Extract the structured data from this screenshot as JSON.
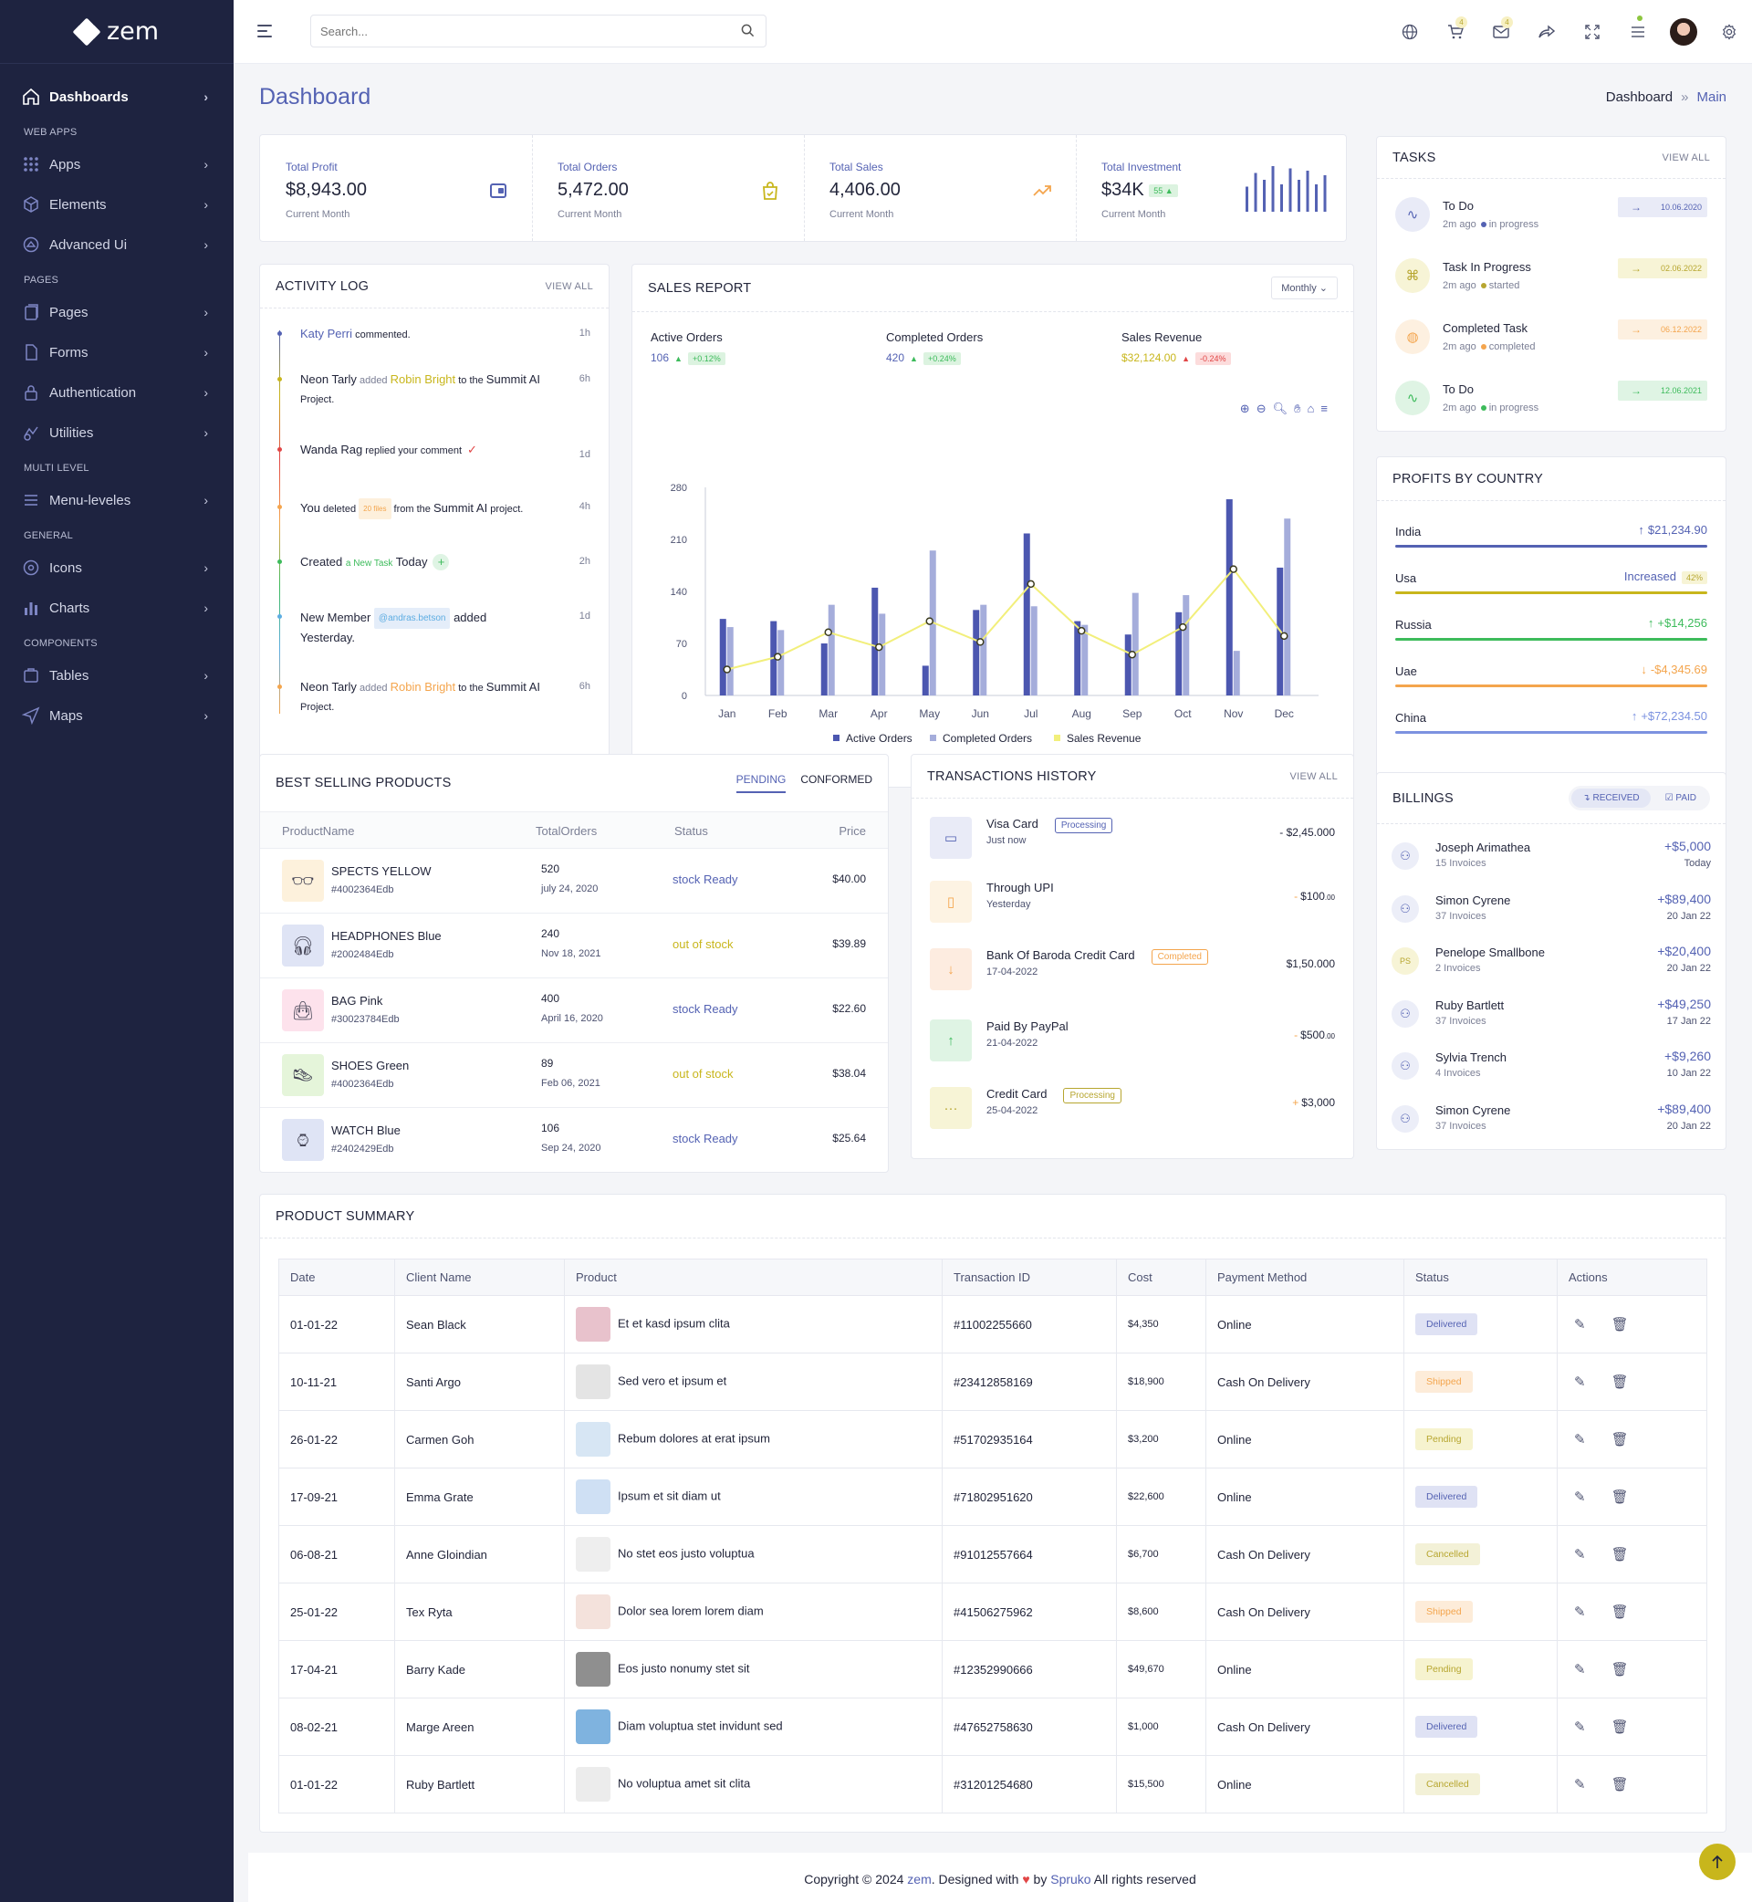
{
  "brand": {
    "name": "zem"
  },
  "sidebar": {
    "items": [
      {
        "type": "item",
        "label": "Dashboards",
        "icon": "home-icon",
        "active": true
      },
      {
        "type": "cat",
        "label": "WEB APPS"
      },
      {
        "type": "item",
        "label": "Apps",
        "icon": "grid-icon"
      },
      {
        "type": "item",
        "label": "Elements",
        "icon": "cube-icon"
      },
      {
        "type": "item",
        "label": "Advanced Ui",
        "icon": "layers-icon"
      },
      {
        "type": "cat",
        "label": "PAGES"
      },
      {
        "type": "item",
        "label": "Pages",
        "icon": "pages-icon"
      },
      {
        "type": "item",
        "label": "Forms",
        "icon": "file-icon"
      },
      {
        "type": "item",
        "label": "Authentication",
        "icon": "lock-icon"
      },
      {
        "type": "item",
        "label": "Utilities",
        "icon": "utilities-icon"
      },
      {
        "type": "cat",
        "label": "MULTI LEVEL"
      },
      {
        "type": "item",
        "label": "Menu-leveles",
        "icon": "menu-icon"
      },
      {
        "type": "cat",
        "label": "GENERAL"
      },
      {
        "type": "item",
        "label": "Icons",
        "icon": "icons-icon"
      },
      {
        "type": "item",
        "label": "Charts",
        "icon": "chart-icon"
      },
      {
        "type": "cat",
        "label": "COMPONENTS"
      },
      {
        "type": "item",
        "label": "Tables",
        "icon": "table-icon"
      },
      {
        "type": "item",
        "label": "Maps",
        "icon": "map-icon"
      }
    ]
  },
  "header": {
    "search_placeholder": "Search...",
    "cart_badge": "4",
    "mail_badge": "4"
  },
  "page": {
    "title": "Dashboard",
    "crumb_root": "Dashboard",
    "crumb_sep": "»",
    "crumb_current": "Main"
  },
  "stats": [
    {
      "label": "Total Profit",
      "value": "$8,943.00",
      "sub": "Current Month",
      "icon": "wallet-icon",
      "color": "#5462b3"
    },
    {
      "label": "Total Orders",
      "value": "5,472.00",
      "sub": "Current Month",
      "icon": "bag-icon",
      "color": "#c8b61c"
    },
    {
      "label": "Total Sales",
      "value": "4,406.00",
      "sub": "Current Month",
      "icon": "trend-icon",
      "color": "#f4a54d"
    },
    {
      "label": "Total Investment",
      "value": "$34K",
      "sub": "Current Month",
      "badge": "55",
      "icon": "bars-icon",
      "color": "#5462b3"
    }
  ],
  "investment_bars": [
    0.55,
    0.85,
    0.7,
    1.0,
    0.6,
    0.95,
    0.7,
    0.9,
    0.6,
    0.8
  ],
  "activity": {
    "title": "ACTIVITY LOG",
    "view_all": "VIEW ALL",
    "rows": [
      {
        "a": "Katy Perri",
        "b": " commented.",
        "time": "1h",
        "color": "#5462b3"
      },
      {
        "a": "Neon Tarly",
        "b": " added ",
        "c": "Robin Bright",
        "d": " to the ",
        "e": "Summit AI",
        "f": "Project.",
        "time": "6h",
        "color": "#c8b61c"
      },
      {
        "a": "Wanda Rag",
        "b": " replied your comment",
        "time": "1d",
        "color": "#e14646"
      },
      {
        "a": "You",
        "b": " deleted ",
        "c": "20 files",
        "d": " from the ",
        "e": "Summit AI",
        "f": " project.",
        "time": "4h",
        "color": "#f4a54d"
      },
      {
        "a": "Created",
        "b": "a New Task",
        "c": "Today",
        "time": "2h",
        "color": "#3dbb5b"
      },
      {
        "a": "New Member",
        "b": "@andras.betson",
        "c": "added",
        "d": "Yesterday.",
        "time": "1d",
        "color": "#5dade2"
      },
      {
        "a": "Neon Tarly",
        "b": " added ",
        "c": "Robin Bright",
        "d": " to the ",
        "e": "Summit AI",
        "f": "Project.",
        "time": "6h",
        "color": "#f4a54d"
      }
    ]
  },
  "sales_report": {
    "title": "SALES REPORT",
    "period": "Monthly",
    "kpis": [
      {
        "label": "Active Orders",
        "value": "106",
        "change": "+0.12%",
        "dir": "up"
      },
      {
        "label": "Completed Orders",
        "value": "420",
        "change": "+0.24%",
        "dir": "up"
      },
      {
        "label": "Sales Revenue",
        "value": "$32,124.00",
        "change": "-0.24%",
        "dir": "down"
      }
    ]
  },
  "chart_data": {
    "type": "bar",
    "categories": [
      "Jan",
      "Feb",
      "Mar",
      "Apr",
      "May",
      "Jun",
      "Jul",
      "Aug",
      "Sep",
      "Oct",
      "Nov",
      "Dec"
    ],
    "series": [
      {
        "name": "Active Orders",
        "type": "bar",
        "color": "#4c57b0",
        "values": [
          103,
          100,
          70,
          145,
          40,
          115,
          218,
          100,
          82,
          112,
          264,
          172
        ]
      },
      {
        "name": "Completed Orders",
        "type": "bar",
        "color": "#a5addb",
        "values": [
          92,
          88,
          122,
          110,
          195,
          122,
          120,
          95,
          138,
          135,
          60,
          238
        ]
      },
      {
        "name": "Sales Revenue",
        "type": "line",
        "color": "#f2ef7b",
        "values": [
          35,
          52,
          85,
          65,
          100,
          72,
          150,
          87,
          55,
          92,
          170,
          80
        ]
      }
    ],
    "yticks": [
      0,
      70,
      140,
      210,
      280
    ],
    "ylim": [
      0,
      280
    ]
  },
  "tasks": {
    "title": "TASKS",
    "view_all": "VIEW ALL",
    "items": [
      {
        "title": "To Do",
        "ago": "2m ago",
        "status": "in progress",
        "date": "10.06.2020",
        "color": "#5462b3",
        "bg": "#e9ebf7",
        "icon": "pulse-icon"
      },
      {
        "title": "Task In Progress",
        "ago": "2m ago",
        "status": "started",
        "date": "02.06.2022",
        "color": "#b7a630",
        "bg": "#f7f4d6",
        "icon": "command-icon"
      },
      {
        "title": "Completed Task",
        "ago": "2m ago",
        "status": "completed",
        "date": "06.12.2022",
        "color": "#f4a54d",
        "bg": "#fdf0e0",
        "icon": "globe-icon"
      },
      {
        "title": "To Do",
        "ago": "2m ago",
        "status": "in progress",
        "date": "12.06.2021",
        "color": "#3dbb5b",
        "bg": "#dff4e4",
        "icon": "activity-icon"
      }
    ]
  },
  "profits": {
    "title": "PROFITS BY COUNTRY",
    "rows": [
      {
        "country": "India",
        "value": "$21,234.90",
        "arrow": "↑",
        "color": "#5462b3",
        "text_color": "#5462b3"
      },
      {
        "country": "Usa",
        "value": "Increased",
        "badge": "42%",
        "color": "#c8b61c",
        "text_color": "#5462b3"
      },
      {
        "country": "Russia",
        "value": "+$14,256",
        "arrow": "↑",
        "color": "#3dbb5b",
        "text_color": "#3dbb5b"
      },
      {
        "country": "Uae",
        "value": "-$4,345.69",
        "arrow": "↓",
        "color": "#f4a54d",
        "text_color": "#f4a54d"
      },
      {
        "country": "China",
        "value": "+$72,234.50",
        "arrow": "↑",
        "color": "#7c92e0",
        "text_color": "#7c92e0"
      }
    ]
  },
  "best_selling": {
    "title": "BEST SELLING PRODUCTS",
    "tab_pending": "PENDING",
    "tab_conformed": "CONFORMED",
    "columns": [
      "ProductName",
      "TotalOrders",
      "Status",
      "Price"
    ],
    "rows": [
      {
        "name": "SPECTS YELLOW",
        "sku": "#4002364Edb",
        "orders": "520",
        "date": "july 24, 2020",
        "status": "stock Ready",
        "status_color": "#5462b3",
        "price": "$40.00",
        "img_bg": "#fdf1dc",
        "img": "glasses"
      },
      {
        "name": "HEADPHONES Blue",
        "sku": "#2002484Edb",
        "orders": "240",
        "date": "Nov 18, 2021",
        "status": "out of stock",
        "status_color": "#c8b61c",
        "price": "$39.89",
        "img_bg": "#dfe4f5",
        "img": "headphones"
      },
      {
        "name": "BAG Pink",
        "sku": "#30023784Edb",
        "orders": "400",
        "date": "April 16, 2020",
        "status": "stock Ready",
        "status_color": "#5462b3",
        "price": "$22.60",
        "img_bg": "#fde2ec",
        "img": "bag"
      },
      {
        "name": "SHOES Green",
        "sku": "#4002364Edb",
        "orders": "89",
        "date": "Feb 06, 2021",
        "status": "out of stock",
        "status_color": "#c8b61c",
        "price": "$38.04",
        "img_bg": "#e5f5da",
        "img": "shoes"
      },
      {
        "name": "WATCH Blue",
        "sku": "#2402429Edb",
        "orders": "106",
        "date": "Sep 24, 2020",
        "status": "stock Ready",
        "status_color": "#5462b3",
        "price": "$25.64",
        "img_bg": "#dfe4f5",
        "img": "watch"
      }
    ]
  },
  "transactions": {
    "title": "TRANSACTIONS HISTORY",
    "view_all": "VIEW ALL",
    "rows": [
      {
        "title": "Visa Card",
        "sub": "Just now",
        "tag": "Processing",
        "tag_color": "#5462b3",
        "amount": "- $2,45.000",
        "icon_bg": "#e9ebf7",
        "icon_color": "#5462b3",
        "icon": "card-icon"
      },
      {
        "title": "Through UPI",
        "sub": "Yesterday",
        "amount": "$100",
        "amount_suffix": ".00",
        "amount_prefix": "-",
        "icon_bg": "#fdf3e3",
        "icon_color": "#f4a54d",
        "icon": "phone-icon"
      },
      {
        "title": "Bank Of Baroda Credit Card",
        "sub": "17-04-2022",
        "tag": "Completed",
        "tag_color": "#f4a54d",
        "amount": "$1,50.000",
        "icon_bg": "#fdece0",
        "icon_color": "#f4a54d",
        "icon": "arrow-down-icon"
      },
      {
        "title": "Paid By PayPal",
        "sub": "21-04-2022",
        "amount": "$500",
        "amount_suffix": ".00",
        "amount_prefix": "-",
        "icon_bg": "#dff4e4",
        "icon_color": "#3dbb5b",
        "icon": "arrow-up-icon"
      },
      {
        "title": "Credit Card",
        "sub": "25-04-2022",
        "tag": "Processing",
        "tag_color": "#b7a630",
        "amount": "$3,000",
        "amount_prefix": "+",
        "icon_bg": "#f7f4d6",
        "icon_color": "#b7a630",
        "icon": "dots-icon"
      }
    ]
  },
  "billings": {
    "title": "BILLINGS",
    "tab_received": "RECEIVED",
    "tab_paid": "PAID",
    "rows": [
      {
        "name": "Joseph Arimathea",
        "invoices": "15 Invoices",
        "amount": "+$5,000",
        "date": "Today",
        "initials": ""
      },
      {
        "name": "Simon Cyrene",
        "invoices": "37 Invoices",
        "amount": "+$89,400",
        "date": "20 Jan 22",
        "initials": ""
      },
      {
        "name": "Penelope Smallbone",
        "invoices": "2 Invoices",
        "amount": "+$20,400",
        "date": "20 Jan 22",
        "initials": "PS"
      },
      {
        "name": "Ruby Bartlett",
        "invoices": "37 Invoices",
        "amount": "+$49,250",
        "date": "17 Jan 22",
        "initials": ""
      },
      {
        "name": "Sylvia Trench",
        "invoices": "4 Invoices",
        "amount": "+$9,260",
        "date": "10 Jan 22",
        "initials": ""
      },
      {
        "name": "Simon Cyrene",
        "invoices": "37 Invoices",
        "amount": "+$89,400",
        "date": "20 Jan 22",
        "initials": ""
      }
    ]
  },
  "product_summary": {
    "title": "PRODUCT SUMMARY",
    "columns": [
      "Date",
      "Client Name",
      "Product",
      "Transaction ID",
      "Cost",
      "Payment Method",
      "Status",
      "Actions"
    ],
    "rows": [
      {
        "date": "01-01-22",
        "client": "Sean Black",
        "product": "Et et kasd ipsum clita",
        "tid": "#11002255660",
        "cost": "$4,350",
        "method": "Online",
        "status": "Delivered",
        "img_bg": "#e8c2cc"
      },
      {
        "date": "10-11-21",
        "client": "Santi Argo",
        "product": "Sed vero et ipsum et",
        "tid": "#23412858169",
        "cost": "$18,900",
        "method": "Cash On Delivery",
        "status": "Shipped",
        "img_bg": "#e4e4e4"
      },
      {
        "date": "26-01-22",
        "client": "Carmen Goh",
        "product": "Rebum dolores at erat ipsum",
        "tid": "#51702935164",
        "cost": "$3,200",
        "method": "Online",
        "status": "Pending",
        "img_bg": "#d7e6f4"
      },
      {
        "date": "17-09-21",
        "client": "Emma Grate",
        "product": "Ipsum et sit diam ut",
        "tid": "#71802951620",
        "cost": "$22,600",
        "method": "Online",
        "status": "Delivered",
        "img_bg": "#cfe0f4"
      },
      {
        "date": "06-08-21",
        "client": "Anne Gloindian",
        "product": "No stet eos justo voluptua",
        "tid": "#91012557664",
        "cost": "$6,700",
        "method": "Cash On Delivery",
        "status": "Cancelled",
        "img_bg": "#eeeeee"
      },
      {
        "date": "25-01-22",
        "client": "Tex Ryta",
        "product": "Dolor sea lorem lorem diam",
        "tid": "#41506275962",
        "cost": "$8,600",
        "method": "Cash On Delivery",
        "status": "Shipped",
        "img_bg": "#f4e2dc"
      },
      {
        "date": "17-04-21",
        "client": "Barry Kade",
        "product": "Eos justo nonumy stet sit",
        "tid": "#12352990666",
        "cost": "$49,670",
        "method": "Online",
        "status": "Pending",
        "img_bg": "#8f8f8f"
      },
      {
        "date": "08-02-21",
        "client": "Marge Areen",
        "product": "Diam voluptua stet invidunt sed",
        "tid": "#47652758630",
        "cost": "$1,000",
        "method": "Cash On Delivery",
        "status": "Delivered",
        "img_bg": "#7fb3df"
      },
      {
        "date": "01-01-22",
        "client": "Ruby Bartlett",
        "product": "No voluptua amet sit clita",
        "tid": "#31201254680",
        "cost": "$15,500",
        "method": "Online",
        "status": "Cancelled",
        "img_bg": "#ececec"
      }
    ],
    "status_colors": {
      "Delivered": {
        "bg": "#dfe2f4",
        "fg": "#5462b3"
      },
      "Shipped": {
        "bg": "#fdecd9",
        "fg": "#f4a54d"
      },
      "Pending": {
        "bg": "#f6f3cf",
        "fg": "#b7a630"
      },
      "Cancelled": {
        "bg": "#f3f1d7",
        "fg": "#b7a630"
      }
    }
  },
  "footer": {
    "prefix": "Copyright © 2024 ",
    "brand": "zem",
    "mid": ". Designed with ",
    "by": " by ",
    "author": "Spruko",
    "suffix": " All rights reserved"
  }
}
